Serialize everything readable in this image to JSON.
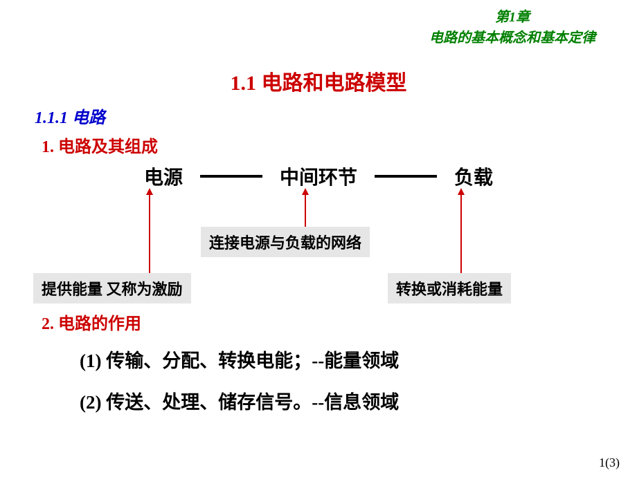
{
  "header": {
    "chapter": "第1章",
    "subtitle": "电路的基本概念和基本定律"
  },
  "title": "1.1  电路和电路模型",
  "subsection": "1.1.1  电路",
  "item1": "1. 电路及其组成",
  "flow": {
    "node1": "电源",
    "node2": "中间环节",
    "node3": "负载"
  },
  "labels": {
    "mid": "连接电源与负载的网络",
    "left": "提供能量 又称为激励",
    "right": "转换或消耗能量"
  },
  "item2": "2. 电路的作用",
  "func1": "(1) 传输、分配、转换电能；--能量领域",
  "func2": "(2) 传送、处理、储存信号。--信息领域",
  "pagenum": "1(3)",
  "colors": {
    "green": "#008000",
    "red": "#cc0000",
    "blue": "#0000cc",
    "box_bg": "#e6e6e6",
    "text": "#000000",
    "bg": "#ffffff"
  }
}
